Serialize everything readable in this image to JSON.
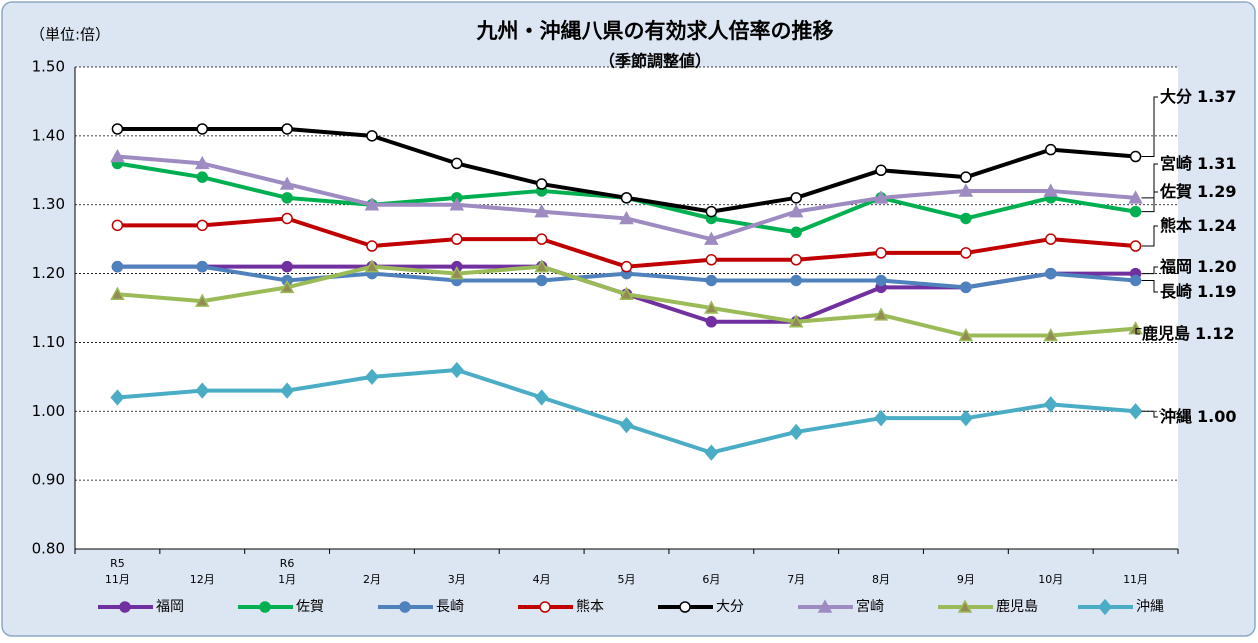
{
  "chart_data": {
    "type": "line",
    "title": "九州・沖縄八県の有効求人倍率の推移",
    "subtitle": "（季節調整値）",
    "unit_label": "（単位:倍）",
    "categories": [
      "11月",
      "12月",
      "1月",
      "2月",
      "3月",
      "4月",
      "5月",
      "6月",
      "7月",
      "8月",
      "9月",
      "10月",
      "11月"
    ],
    "era_labels": [
      "R5",
      null,
      "R6",
      null,
      null,
      null,
      null,
      null,
      null,
      null,
      null,
      null,
      null
    ],
    "ylim": [
      0.8,
      1.5
    ],
    "yticks": [
      {
        "value": 0.8,
        "label": "0.80"
      },
      {
        "value": 0.9,
        "label": "0.90"
      },
      {
        "value": 1,
        "label": "1.00"
      },
      {
        "value": 1.1,
        "label": "1.10"
      },
      {
        "value": 1.2,
        "label": "1.20"
      },
      {
        "value": 1.3,
        "label": "1.30"
      },
      {
        "value": 1.4,
        "label": "1.40"
      },
      {
        "value": 1.5,
        "label": "1.50"
      }
    ],
    "grid": true,
    "legend": "bottom",
    "series": [
      {
        "name": "福岡",
        "color": "#7030a0",
        "marker": "circle",
        "marker_fill": "#7030a0",
        "values": [
          1.21,
          1.21,
          1.21,
          1.21,
          1.21,
          1.21,
          1.17,
          1.13,
          1.13,
          1.18,
          1.18,
          1.2,
          1.2
        ],
        "value_labels": [
          null,
          null,
          null,
          null,
          null,
          null,
          null,
          null,
          null,
          null,
          null,
          null,
          "1.20"
        ]
      },
      {
        "name": "佐賀",
        "color": "#00b050",
        "marker": "circle",
        "marker_fill": "#00b050",
        "values": [
          1.36,
          1.34,
          1.31,
          1.3,
          1.31,
          1.32,
          1.31,
          1.28,
          1.26,
          1.31,
          1.28,
          1.31,
          1.29
        ],
        "value_labels": [
          null,
          null,
          null,
          null,
          null,
          null,
          null,
          null,
          null,
          null,
          null,
          null,
          "1.29"
        ]
      },
      {
        "name": "長崎",
        "color": "#4f81bd",
        "marker": "circle",
        "marker_fill": "#4f81bd",
        "values": [
          1.21,
          1.21,
          1.19,
          1.2,
          1.19,
          1.19,
          1.2,
          1.19,
          1.19,
          1.19,
          1.18,
          1.2,
          1.19
        ],
        "value_labels": [
          null,
          null,
          null,
          null,
          null,
          null,
          null,
          null,
          null,
          null,
          null,
          null,
          "1.19"
        ]
      },
      {
        "name": "熊本",
        "color": "#c00000",
        "marker": "circle",
        "marker_fill": "#ffffff",
        "values": [
          1.27,
          1.27,
          1.28,
          1.24,
          1.25,
          1.25,
          1.21,
          1.22,
          1.22,
          1.23,
          1.23,
          1.25,
          1.24
        ],
        "value_labels": [
          null,
          null,
          null,
          null,
          null,
          null,
          null,
          null,
          null,
          null,
          null,
          null,
          "1.24"
        ]
      },
      {
        "name": "大分",
        "color": "#000000",
        "marker": "circle",
        "marker_fill": "#ffffff",
        "values": [
          1.41,
          1.41,
          1.41,
          1.4,
          1.36,
          1.33,
          1.31,
          1.29,
          1.31,
          1.35,
          1.34,
          1.38,
          1.37
        ],
        "value_labels": [
          null,
          null,
          null,
          null,
          null,
          null,
          null,
          null,
          null,
          null,
          null,
          null,
          "1.37"
        ]
      },
      {
        "name": "宮崎",
        "color": "#9e8bc1",
        "marker": "triangle",
        "marker_fill": "#9e8bc1",
        "values": [
          1.37,
          1.36,
          1.33,
          1.3,
          1.3,
          1.29,
          1.28,
          1.25,
          1.29,
          1.31,
          1.32,
          1.32,
          1.31
        ],
        "value_labels": [
          null,
          null,
          null,
          null,
          null,
          null,
          null,
          null,
          null,
          null,
          null,
          null,
          "1.31"
        ]
      },
      {
        "name": "鹿児島",
        "color": "#9bbb59",
        "marker": "triangle",
        "marker_fill": "#948a54",
        "values": [
          1.17,
          1.16,
          1.18,
          1.21,
          1.2,
          1.21,
          1.17,
          1.15,
          1.13,
          1.14,
          1.11,
          1.11,
          1.12
        ],
        "value_labels": [
          null,
          null,
          null,
          null,
          null,
          null,
          null,
          null,
          null,
          null,
          null,
          null,
          "1.12"
        ]
      },
      {
        "name": "沖縄",
        "color": "#4bacc6",
        "marker": "diamond",
        "marker_fill": "#4bacc6",
        "values": [
          1.02,
          1.03,
          1.03,
          1.05,
          1.06,
          1.02,
          0.98,
          0.94,
          0.97,
          0.99,
          0.99,
          1.01,
          1.0
        ],
        "value_labels": [
          null,
          null,
          null,
          null,
          null,
          null,
          null,
          null,
          null,
          null,
          null,
          null,
          "1.00"
        ]
      }
    ]
  }
}
